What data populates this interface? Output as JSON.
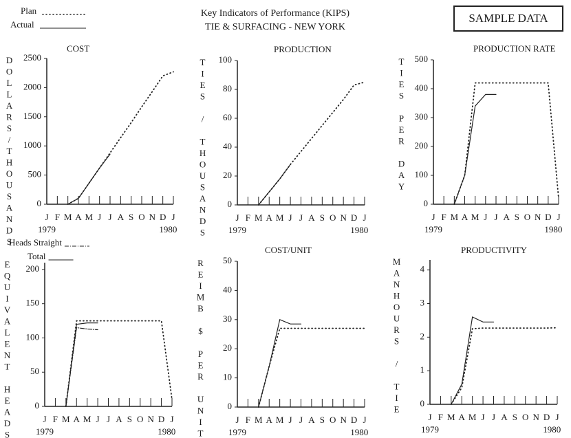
{
  "header": {
    "title": "Key Indicators of Performance (KIPS)",
    "subtitle": "TIE & SURFACING - NEW YORK",
    "stamp": "SAMPLE DATA",
    "legend": [
      {
        "label": "Plan",
        "style": "dotted"
      },
      {
        "label": "Actual",
        "style": "solid"
      }
    ]
  },
  "chart_data": [
    {
      "type": "line",
      "title": "COST",
      "y_label": "DOLLARS/THOUSANDS",
      "categories": [
        "J",
        "F",
        "M",
        "A",
        "M",
        "J",
        "J",
        "A",
        "S",
        "O",
        "N",
        "D",
        "J"
      ],
      "years": [
        "1979",
        "1980"
      ],
      "ylim": [
        0,
        2500
      ],
      "yticks": [
        0,
        500,
        1000,
        1500,
        2000,
        2500
      ],
      "series": [
        {
          "style": "dotted",
          "color": "#222",
          "values": [
            null,
            null,
            0,
            100,
            360,
            620,
            880,
            1140,
            1400,
            1670,
            1930,
            2200,
            2270
          ]
        },
        {
          "style": "solid",
          "color": "#222",
          "values": [
            null,
            null,
            0,
            100,
            360,
            620,
            860,
            null,
            null,
            null,
            null,
            null,
            null
          ]
        }
      ]
    },
    {
      "type": "line",
      "title": "PRODUCTION",
      "y_label": "TIES / THOUSANDS",
      "categories": [
        "J",
        "F",
        "M",
        "A",
        "M",
        "J",
        "J",
        "A",
        "S",
        "O",
        "N",
        "D",
        "J"
      ],
      "years": [
        "1979",
        "1980"
      ],
      "ylim": [
        0,
        100
      ],
      "yticks": [
        0,
        20,
        40,
        60,
        80,
        100
      ],
      "series": [
        {
          "style": "dotted",
          "color": "#222",
          "values": [
            null,
            null,
            0,
            9,
            18,
            28,
            37,
            46,
            55,
            64,
            73,
            83,
            85
          ]
        },
        {
          "style": "solid",
          "color": "#222",
          "values": [
            null,
            null,
            0,
            9,
            18,
            28,
            null,
            null,
            null,
            null,
            null,
            null,
            null
          ]
        }
      ]
    },
    {
      "type": "line",
      "title": "PRODUCTION RATE",
      "y_label": "TIES PER DAY",
      "categories": [
        "J",
        "F",
        "M",
        "A",
        "M",
        "J",
        "J",
        "A",
        "S",
        "O",
        "N",
        "D",
        "J"
      ],
      "years": [
        "1979",
        "1980"
      ],
      "ylim": [
        0,
        500
      ],
      "yticks": [
        0,
        100,
        200,
        300,
        400,
        500
      ],
      "series": [
        {
          "style": "dotted",
          "color": "#222",
          "values": [
            null,
            null,
            0,
            100,
            420,
            420,
            420,
            420,
            420,
            420,
            420,
            420,
            20
          ]
        },
        {
          "style": "solid",
          "color": "#222",
          "values": [
            null,
            null,
            0,
            100,
            340,
            380,
            380,
            null,
            null,
            null,
            null,
            null,
            null
          ]
        }
      ]
    },
    {
      "type": "line",
      "y_label": "EQUIVALENT HEADS",
      "categories": [
        "J",
        "F",
        "M",
        "A",
        "M",
        "J",
        "J",
        "A",
        "S",
        "O",
        "N",
        "D",
        "J"
      ],
      "years": [
        "1979",
        "1980"
      ],
      "ylim": [
        0,
        210
      ],
      "yticks": [
        0,
        50,
        100,
        150,
        200
      ],
      "series": [
        {
          "style": "dotted",
          "color": "#222",
          "values": [
            null,
            null,
            0,
            125,
            125,
            125,
            125,
            125,
            125,
            125,
            125,
            125,
            10
          ]
        },
        {
          "name": "Heads Straight",
          "style": "dashdot",
          "color": "#222",
          "values": [
            null,
            null,
            0,
            115,
            113,
            112,
            null,
            null,
            null,
            null,
            null,
            null,
            null
          ]
        },
        {
          "name": "Total",
          "style": "solid",
          "color": "#222",
          "values": [
            null,
            null,
            0,
            120,
            122,
            122,
            null,
            null,
            null,
            null,
            null,
            null,
            null
          ]
        }
      ]
    },
    {
      "type": "line",
      "title": "COST/UNIT",
      "y_label": "REIMB $ PER UNIT",
      "categories": [
        "J",
        "F",
        "M",
        "A",
        "M",
        "J",
        "J",
        "A",
        "S",
        "O",
        "N",
        "D",
        "J"
      ],
      "years": [
        "1979",
        "1980"
      ],
      "ylim": [
        0,
        50
      ],
      "yticks": [
        0,
        10,
        20,
        30,
        40,
        50
      ],
      "series": [
        {
          "style": "dotted",
          "color": "#222",
          "values": [
            null,
            null,
            0,
            14,
            27,
            27,
            27,
            27,
            27,
            27,
            27,
            27,
            27
          ]
        },
        {
          "style": "solid",
          "color": "#222",
          "values": [
            null,
            null,
            0,
            14,
            30,
            28.5,
            28.5,
            null,
            null,
            null,
            null,
            null,
            null
          ]
        }
      ]
    },
    {
      "type": "line",
      "title": "PRODUCTIVITY",
      "y_label": "MANHOURS / TIE",
      "categories": [
        "J",
        "F",
        "M",
        "A",
        "M",
        "J",
        "J",
        "A",
        "S",
        "O",
        "N",
        "D",
        "J"
      ],
      "years": [
        "1979",
        "1980"
      ],
      "ylim": [
        0,
        4.3
      ],
      "yticks": [
        0,
        1,
        2,
        3,
        4
      ],
      "series": [
        {
          "style": "dotted",
          "color": "#222",
          "values": [
            null,
            null,
            0,
            0.5,
            2.25,
            2.27,
            2.27,
            2.27,
            2.27,
            2.27,
            2.27,
            2.27,
            2.28
          ]
        },
        {
          "style": "solid",
          "color": "#222",
          "values": [
            null,
            null,
            0,
            0.6,
            2.6,
            2.45,
            2.45,
            null,
            null,
            null,
            null,
            null,
            null
          ]
        }
      ]
    }
  ]
}
